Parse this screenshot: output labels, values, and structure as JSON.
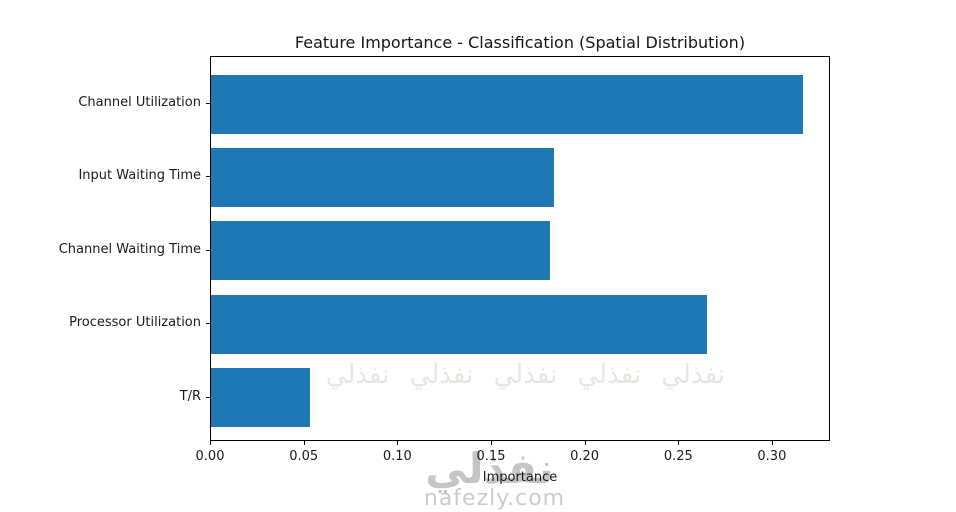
{
  "watermark": {
    "brand_arabic": "نفذلي",
    "brand_domain": "nafezly.com",
    "tile_row": "نفذلي نفذلي نفذلي نفذلي نفذلي نفذلي نفذلي",
    "color": "#c8c8c8"
  },
  "chart_data": {
    "type": "bar",
    "orientation": "horizontal",
    "title": "Feature Importance - Classification (Spatial Distribution)",
    "categories": [
      "Channel Utilization",
      "Input Waiting Time",
      "Channel Waiting Time",
      "Processor Utilization",
      "T/R"
    ],
    "values": [
      0.316,
      0.183,
      0.181,
      0.265,
      0.053
    ],
    "xlabel": "Importance",
    "ylabel": "",
    "xlim": [
      0,
      0.331
    ],
    "xticks": [
      0.0,
      0.05,
      0.1,
      0.15,
      0.2,
      0.25,
      0.3
    ],
    "xtick_labels": [
      "0.00",
      "0.05",
      "0.10",
      "0.15",
      "0.20",
      "0.25",
      "0.30"
    ],
    "bar_color": "#1f77b4",
    "grid": false,
    "legend": null,
    "background": "#ffffff"
  }
}
